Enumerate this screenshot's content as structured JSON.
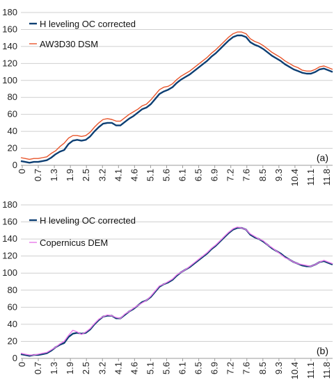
{
  "chart_data": [
    {
      "type": "line",
      "panel_label": "(a)",
      "ylim": [
        0,
        180
      ],
      "yticks": [
        0,
        20,
        40,
        60,
        80,
        100,
        120,
        140,
        160,
        180
      ],
      "xtick_labels": [
        "0",
        "0.7",
        "1.3",
        "1.9",
        "2.5",
        "3.2",
        "4.1",
        "4.6",
        "5.1",
        "5.6",
        "6.1",
        "6.5",
        "6.9",
        "7.2",
        "7.6",
        "8.5",
        "9.3",
        "10.4",
        "11.1",
        "11.8"
      ],
      "grid": "horizontal",
      "legend_position": "top-left",
      "series": [
        {
          "name": "H leveling OC corrected",
          "color": "#0d3f73",
          "values": [
            5,
            4,
            3,
            4,
            4,
            5,
            6,
            9,
            13,
            16,
            18,
            25,
            29,
            30,
            29,
            30,
            34,
            40,
            45,
            49,
            50,
            50,
            47,
            47,
            51,
            55,
            58,
            62,
            66,
            68,
            72,
            78,
            84,
            87,
            89,
            92,
            97,
            101,
            104,
            107,
            111,
            115,
            119,
            123,
            128,
            132,
            137,
            142,
            147,
            151,
            153,
            153,
            151,
            145,
            142,
            140,
            137,
            133,
            129,
            126,
            123,
            119,
            116,
            113,
            111,
            109,
            108,
            108,
            110,
            113,
            114,
            112,
            110
          ]
        },
        {
          "name": "AW3D30 DSM",
          "color": "#e8542a",
          "values": [
            9,
            8,
            7,
            8,
            8,
            9,
            10,
            14,
            17,
            22,
            26,
            32,
            35,
            35,
            34,
            35,
            39,
            45,
            50,
            54,
            55,
            54,
            52,
            52,
            56,
            60,
            63,
            66,
            70,
            72,
            77,
            83,
            89,
            92,
            93,
            96,
            101,
            105,
            108,
            111,
            115,
            119,
            123,
            127,
            132,
            136,
            141,
            146,
            151,
            155,
            157,
            157,
            155,
            149,
            146,
            144,
            141,
            137,
            133,
            130,
            127,
            123,
            120,
            117,
            115,
            112,
            111,
            111,
            113,
            116,
            117,
            115,
            113
          ]
        }
      ]
    },
    {
      "type": "line",
      "panel_label": "(b)",
      "ylim": [
        0,
        180
      ],
      "yticks": [
        0,
        20,
        40,
        60,
        80,
        100,
        120,
        140,
        160,
        180
      ],
      "xtick_labels": [
        "0",
        "0.7",
        "1.3",
        "1.9",
        "2.5",
        "3.2",
        "4.1",
        "4.6",
        "5.1",
        "5.6",
        "6.1",
        "6.5",
        "6.9",
        "7.2",
        "7.6",
        "8.5",
        "9.3",
        "10.4",
        "11.1",
        "11.8"
      ],
      "grid": "horizontal",
      "legend_position": "top-left",
      "series": [
        {
          "name": "H leveling OC corrected",
          "color": "#0d3f73",
          "values": [
            5,
            4,
            3,
            4,
            4,
            5,
            6,
            9,
            13,
            16,
            18,
            25,
            29,
            30,
            29,
            30,
            34,
            40,
            45,
            49,
            50,
            50,
            47,
            47,
            51,
            55,
            58,
            62,
            66,
            68,
            72,
            78,
            84,
            87,
            89,
            92,
            97,
            101,
            104,
            107,
            111,
            115,
            119,
            123,
            128,
            132,
            137,
            142,
            147,
            151,
            153,
            153,
            151,
            145,
            142,
            140,
            137,
            133,
            129,
            126,
            123,
            119,
            116,
            113,
            111,
            109,
            108,
            108,
            110,
            113,
            114,
            112,
            110
          ]
        },
        {
          "name": "Copernicus DEM",
          "color": "#e879ea",
          "values": [
            6,
            5,
            4,
            4,
            5,
            6,
            7,
            10,
            13,
            17,
            20,
            27,
            33,
            31,
            28,
            31,
            35,
            41,
            46,
            49,
            51,
            50,
            48,
            47,
            52,
            55,
            59,
            62,
            65,
            68,
            73,
            79,
            85,
            87,
            90,
            93,
            98,
            101,
            104,
            108,
            112,
            116,
            120,
            124,
            129,
            133,
            138,
            143,
            148,
            152,
            154,
            153,
            151,
            146,
            143,
            140,
            138,
            133,
            130,
            126,
            122,
            118,
            116,
            113,
            111,
            110,
            109,
            108,
            110,
            113,
            115,
            113,
            111
          ]
        }
      ]
    }
  ]
}
